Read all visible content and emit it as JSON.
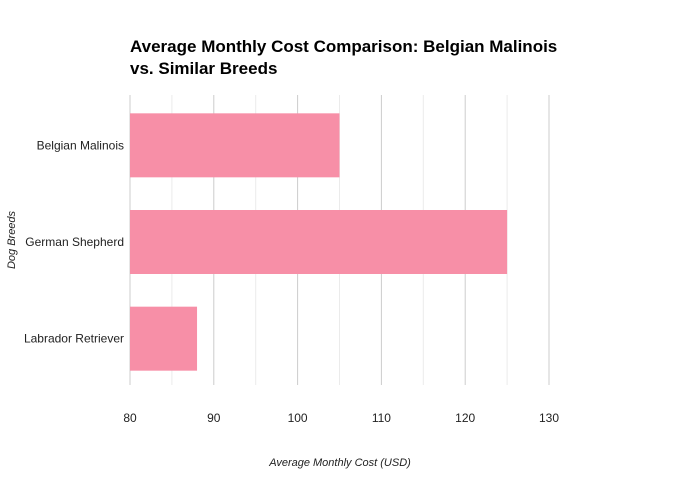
{
  "chart_data": {
    "type": "bar",
    "orientation": "horizontal",
    "title": "Average Monthly Cost Comparison: Belgian Malinois vs. Similar Breeds",
    "xlabel": "Average Monthly Cost (USD)",
    "ylabel": "Dog Breeds",
    "categories": [
      "Belgian Malinois",
      "German Shepherd",
      "Labrador Retriever"
    ],
    "values": [
      105,
      125,
      88
    ],
    "xlim": [
      80,
      130
    ],
    "xticks": [
      80,
      90,
      100,
      110,
      120,
      130
    ],
    "grid": true,
    "bar_color": "#f78fa7"
  }
}
